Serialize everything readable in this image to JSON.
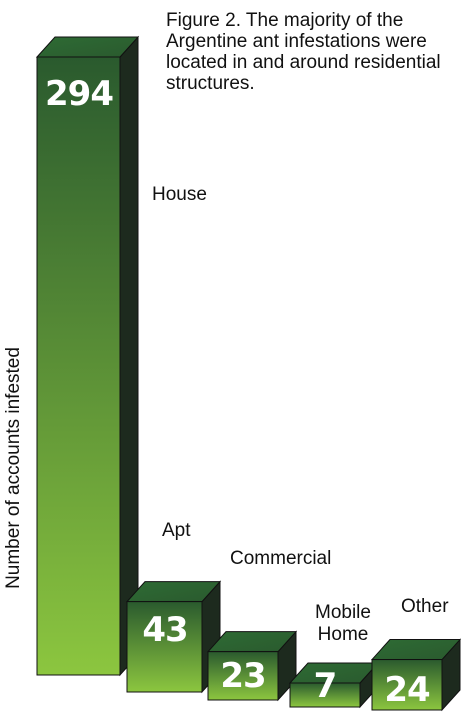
{
  "chart_data": {
    "type": "bar",
    "title": "Figure 2. The majority of the Argentine ant infestations were located in and around residential structures.",
    "ylabel": "Number of accounts infested",
    "xlabel": "",
    "categories": [
      "House",
      "Apt",
      "Commercial",
      "Mobile Home",
      "Other"
    ],
    "category_lines": [
      [
        "House"
      ],
      [
        "Apt"
      ],
      [
        "Commercial"
      ],
      [
        "Mobile",
        "Home"
      ],
      [
        "Other"
      ]
    ],
    "values": [
      294,
      43,
      23,
      7,
      24
    ],
    "value_labels": [
      "294",
      "43",
      "23",
      "7",
      "24"
    ],
    "ylim": [
      0,
      294
    ],
    "grid": false,
    "legend": "none",
    "style": "3d-bars"
  },
  "colors": {
    "bar_front_top": "#2a5a2e",
    "bar_front_bottom": "#8cc63f",
    "bar_top_face": "#2e6b34",
    "bar_side_face": "#1d2a1e",
    "bar_outline": "#111111",
    "value_text": "#ffffff",
    "label_text": "#111111"
  }
}
